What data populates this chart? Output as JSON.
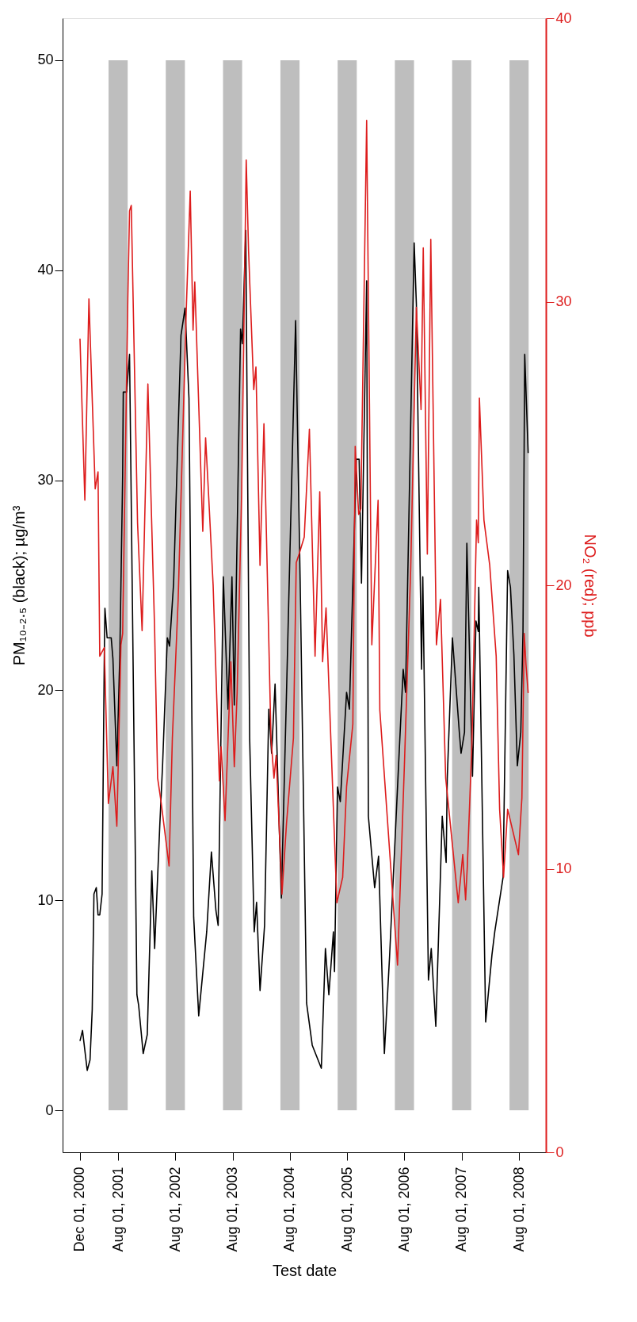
{
  "chart_data": {
    "type": "line",
    "xlabel": "Test date",
    "ylabel": "PM₁₀₋₂.₅ (black); µg/m³",
    "y2label": "NO₂ (red); ppb",
    "xlim": [
      "2000-08-12",
      "2009-01-19"
    ],
    "xticks": [
      {
        "value": "2000-12-01",
        "label": "Dec 01, 2000"
      },
      {
        "value": "2001-08-01",
        "label": "Aug 01, 2001"
      },
      {
        "value": "2002-08-01",
        "label": "Aug 01, 2002"
      },
      {
        "value": "2003-08-01",
        "label": "Aug 01, 2003"
      },
      {
        "value": "2004-08-01",
        "label": "Aug 01, 2004"
      },
      {
        "value": "2005-08-01",
        "label": "Aug 01, 2005"
      },
      {
        "value": "2006-08-01",
        "label": "Aug 01, 2006"
      },
      {
        "value": "2007-08-01",
        "label": "Aug 01, 2007"
      },
      {
        "value": "2008-08-01",
        "label": "Aug 01, 2008"
      }
    ],
    "ylim": [
      -2,
      52
    ],
    "yticks": [
      0,
      10,
      20,
      30,
      40,
      50
    ],
    "y2lim": [
      0,
      40
    ],
    "y2ticks": [
      0,
      10,
      20,
      30,
      40
    ],
    "grid": false,
    "legend": false,
    "line_style": "solid",
    "marker": "none",
    "bands": [
      {
        "axis": "x",
        "from": "2001-06-01",
        "to": "2001-10-01",
        "color": "#bebebe"
      },
      {
        "axis": "x",
        "from": "2002-06-01",
        "to": "2002-10-01",
        "color": "#bebebe"
      },
      {
        "axis": "x",
        "from": "2003-06-01",
        "to": "2003-10-01",
        "color": "#bebebe"
      },
      {
        "axis": "x",
        "from": "2004-06-01",
        "to": "2004-10-01",
        "color": "#bebebe"
      },
      {
        "axis": "x",
        "from": "2005-06-01",
        "to": "2005-10-01",
        "color": "#bebebe"
      },
      {
        "axis": "x",
        "from": "2006-06-01",
        "to": "2006-10-01",
        "color": "#bebebe"
      },
      {
        "axis": "x",
        "from": "2007-06-01",
        "to": "2007-10-01",
        "color": "#bebebe"
      },
      {
        "axis": "x",
        "from": "2008-06-01",
        "to": "2008-10-01",
        "color": "#bebebe"
      }
    ],
    "series": [
      {
        "color": "#000000",
        "x": [
          "2000-12-01",
          "2000-12-17",
          "2001-01-16",
          "2001-02-03",
          "2001-02-17",
          "2001-02-28",
          "2001-03-15",
          "2001-03-26",
          "2001-04-06",
          "2001-04-21",
          "2001-05-05",
          "2001-05-09",
          "2001-05-23",
          "2001-06-18",
          "2001-06-29",
          "2001-07-24",
          "2001-08-12",
          "2001-08-30",
          "2001-09-03",
          "2001-09-24",
          "2001-10-13",
          "2001-11-29",
          "2001-12-10",
          "2002-01-08",
          "2002-02-03",
          "2002-03-04",
          "2002-03-22",
          "2002-04-24",
          "2002-05-12",
          "2002-06-11",
          "2002-06-25",
          "2002-07-21",
          "2002-09-06",
          "2002-10-02",
          "2002-10-27",
          "2002-11-26",
          "2002-12-28",
          "2003-02-17",
          "2003-03-19",
          "2003-04-17",
          "2003-05-01",
          "2003-06-03",
          "2003-07-03",
          "2003-07-28",
          "2003-08-12",
          "2003-09-21",
          "2003-10-02",
          "2003-10-24",
          "2003-11-18",
          "2003-12-17",
          "2004-01-01",
          "2004-01-23",
          "2004-02-21",
          "2004-03-19",
          "2004-04-06",
          "2004-04-28",
          "2004-06-07",
          "2004-07-10",
          "2004-09-06",
          "2004-10-05",
          "2004-11-15",
          "2004-12-21",
          "2005-02-17",
          "2005-03-15",
          "2005-04-06",
          "2005-05-05",
          "2005-05-12",
          "2005-05-31",
          "2005-06-18",
          "2005-07-28",
          "2005-08-15",
          "2005-09-28",
          "2005-10-16",
          "2005-10-31",
          "2005-12-03",
          "2005-12-14",
          "2006-01-23",
          "2006-02-17",
          "2006-03-26",
          "2006-04-28",
          "2006-06-25",
          "2006-07-24",
          "2006-08-08",
          "2006-10-02",
          "2006-10-16",
          "2006-11-18",
          "2006-11-26",
          "2007-01-01",
          "2007-01-19",
          "2007-02-17",
          "2007-03-30",
          "2007-04-24",
          "2007-05-01",
          "2007-06-03",
          "2007-07-17",
          "2007-07-28",
          "2007-08-19",
          "2007-09-03",
          "2007-10-09",
          "2007-10-31",
          "2007-11-15",
          "2007-11-18",
          "2008-01-01",
          "2008-02-10",
          "2008-02-28",
          "2008-04-21",
          "2008-05-20",
          "2008-06-07",
          "2008-06-29",
          "2008-07-21",
          "2008-08-12",
          "2008-08-26",
          "2008-09-06",
          "2008-09-28"
        ],
        "values": [
          3.3,
          3.8,
          1.9,
          2.4,
          4.8,
          10.3,
          10.6,
          9.3,
          9.3,
          10.3,
          21.7,
          23.9,
          22.5,
          22.5,
          21.5,
          16.4,
          21.7,
          30.2,
          34.2,
          34.2,
          36.0,
          5.5,
          5.0,
          2.7,
          3.6,
          11.4,
          7.7,
          13.6,
          16.5,
          22.5,
          22.1,
          25.1,
          36.9,
          38.2,
          33.9,
          9.2,
          4.5,
          8.5,
          12.3,
          9.5,
          8.8,
          25.4,
          19.1,
          25.4,
          19.3,
          37.2,
          36.5,
          41.9,
          17.7,
          8.5,
          9.9,
          5.7,
          8.8,
          19.1,
          17.0,
          20.3,
          10.1,
          19.9,
          37.6,
          25.2,
          5.1,
          3.1,
          2.0,
          7.7,
          5.5,
          8.5,
          6.6,
          15.4,
          14.7,
          19.9,
          19.1,
          31.0,
          31.0,
          25.1,
          39.5,
          14.0,
          10.6,
          12.1,
          2.7,
          7.3,
          16.5,
          21.0,
          19.9,
          41.3,
          38.4,
          21.0,
          25.4,
          6.2,
          7.7,
          4.0,
          14.0,
          11.8,
          15.8,
          22.5,
          18.0,
          17.0,
          18.0,
          27.0,
          15.9,
          23.3,
          22.8,
          24.9,
          4.2,
          7.4,
          8.5,
          11.1,
          25.7,
          24.9,
          21.7,
          16.4,
          18.0,
          22.8,
          36.0,
          31.3
        ]
      },
      {
        "color": "#dd1c1c",
        "axis": "y2",
        "x": [
          "2000-12-01",
          "2001-01-01",
          "2001-01-27",
          "2001-03-08",
          "2001-03-26",
          "2001-04-06",
          "2001-05-05",
          "2001-05-31",
          "2001-06-29",
          "2001-07-24",
          "2001-08-19",
          "2001-08-30",
          "2001-10-02",
          "2001-10-13",
          "2001-10-24",
          "2001-12-03",
          "2002-01-01",
          "2002-02-07",
          "2002-03-22",
          "2002-04-10",
          "2002-05-01",
          "2002-06-22",
          "2002-07-13",
          "2002-08-19",
          "2002-10-09",
          "2002-11-04",
          "2002-11-22",
          "2002-12-03",
          "2003-01-23",
          "2003-02-10",
          "2003-02-28",
          "2003-03-30",
          "2003-05-09",
          "2003-05-20",
          "2003-06-14",
          "2003-07-21",
          "2003-08-12",
          "2003-08-30",
          "2003-09-28",
          "2003-10-27",
          "2003-11-11",
          "2003-12-14",
          "2003-12-28",
          "2004-01-23",
          "2004-02-17",
          "2004-04-02",
          "2004-04-21",
          "2004-05-05",
          "2004-06-11",
          "2004-07-10",
          "2004-08-23",
          "2004-09-10",
          "2004-09-28",
          "2004-10-31",
          "2004-12-03",
          "2005-01-08",
          "2005-02-07",
          "2005-02-25",
          "2005-03-19",
          "2005-05-27",
          "2005-07-03",
          "2005-07-28",
          "2005-09-06",
          "2005-09-21",
          "2005-10-13",
          "2005-10-27",
          "2005-12-03",
          "2006-01-05",
          "2006-02-14",
          "2006-02-25",
          "2006-06-18",
          "2006-08-01",
          "2006-09-10",
          "2006-10-16",
          "2006-11-15",
          "2006-11-29",
          "2006-12-25",
          "2007-01-16",
          "2007-02-21",
          "2007-03-19",
          "2007-04-21",
          "2007-07-10",
          "2007-08-08",
          "2007-08-26",
          "2007-09-06",
          "2007-10-05",
          "2007-11-04",
          "2007-11-15",
          "2007-11-22",
          "2007-12-21",
          "2008-01-27",
          "2008-03-08",
          "2008-03-30",
          "2008-04-24",
          "2008-05-20",
          "2008-07-28",
          "2008-08-19",
          "2008-09-03",
          "2008-09-14",
          "2008-09-28"
        ],
        "values": [
          28.7,
          23.0,
          30.1,
          23.4,
          24.0,
          17.5,
          17.8,
          12.3,
          13.6,
          11.5,
          17.9,
          18.3,
          30.1,
          33.2,
          33.4,
          22.2,
          18.4,
          27.1,
          18.4,
          13.2,
          12.4,
          10.1,
          14.6,
          19.5,
          29.6,
          33.9,
          29.0,
          30.7,
          21.9,
          25.2,
          23.3,
          20.0,
          13.1,
          14.3,
          11.7,
          17.3,
          13.6,
          16.2,
          23.3,
          35.0,
          31.8,
          26.9,
          27.7,
          20.7,
          25.7,
          14.6,
          13.2,
          14.0,
          9.1,
          11.6,
          14.6,
          20.8,
          21.1,
          21.7,
          25.5,
          17.5,
          23.3,
          17.3,
          19.2,
          8.8,
          9.7,
          12.9,
          15.1,
          24.9,
          22.5,
          22.7,
          36.4,
          17.9,
          23.0,
          15.6,
          6.6,
          13.7,
          20.6,
          29.8,
          26.2,
          31.9,
          21.1,
          32.2,
          17.9,
          19.5,
          13.2,
          8.8,
          10.5,
          8.9,
          10.1,
          14.4,
          22.3,
          21.5,
          26.6,
          22.3,
          20.7,
          17.5,
          12.1,
          9.7,
          12.1,
          10.5,
          12.5,
          18.3,
          17.2,
          16.2
        ]
      }
    ]
  }
}
